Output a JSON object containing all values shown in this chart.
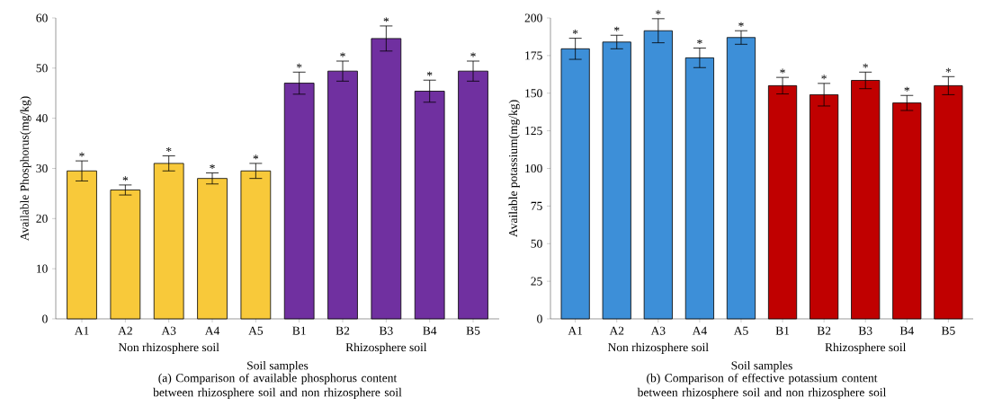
{
  "chart_data": [
    {
      "type": "bar",
      "title": "(a) Comparison of available phosphorus content between rhizosphere soil and non rhizosphere soil",
      "xlabel": "Soil samples",
      "ylabel": "Available Phosphorus(mg/kg)",
      "categories": [
        "A1",
        "A2",
        "A3",
        "A4",
        "A5",
        "B1",
        "B2",
        "B3",
        "B4",
        "B5"
      ],
      "series": [
        {
          "color": "#f8c93a",
          "values": [
            29.5,
            25.7,
            31.0,
            28.0,
            29.5,
            null,
            null,
            null,
            null,
            null
          ],
          "errors": [
            2.0,
            1.0,
            1.5,
            1.1,
            1.5,
            null,
            null,
            null,
            null,
            null
          ],
          "value_labels": [
            "*",
            "*",
            "*",
            "*",
            "*",
            null,
            null,
            null,
            null,
            null
          ]
        },
        {
          "color": "#7030a0",
          "values": [
            null,
            null,
            null,
            null,
            null,
            47.0,
            49.4,
            55.9,
            45.4,
            49.4
          ],
          "errors": [
            null,
            null,
            null,
            null,
            null,
            2.2,
            2.0,
            2.5,
            2.2,
            2.0
          ],
          "value_labels": [
            null,
            null,
            null,
            null,
            null,
            "*",
            "*",
            "*",
            "*",
            "*"
          ]
        }
      ],
      "ylim": [
        0,
        60
      ],
      "yticks": [
        0,
        10,
        20,
        30,
        40,
        50,
        60
      ],
      "annotations": [
        "Non rhizosphere soil",
        "Rhizosphere soil"
      ]
    },
    {
      "type": "bar",
      "title": "(b) Comparison of effective potassium content between rhizosphere soil and non rhizosphere soil",
      "xlabel": "Soil samples",
      "ylabel": "Available potassium(mg/kg)",
      "categories": [
        "A1",
        "A2",
        "A3",
        "A4",
        "A5",
        "B1",
        "B2",
        "B3",
        "B4",
        "B5"
      ],
      "series": [
        {
          "color": "#3d8fd8",
          "values": [
            179.5,
            184.0,
            191.5,
            173.5,
            187.0,
            null,
            null,
            null,
            null,
            null
          ],
          "errors": [
            7.0,
            4.5,
            8.0,
            6.5,
            4.5,
            null,
            null,
            null,
            null,
            null
          ],
          "value_labels": [
            "*",
            "*",
            "*",
            "*",
            "*",
            null,
            null,
            null,
            null,
            null
          ]
        },
        {
          "color": "#c00000",
          "values": [
            null,
            null,
            null,
            null,
            null,
            155.0,
            149.0,
            158.5,
            143.5,
            155.0
          ],
          "errors": [
            null,
            null,
            null,
            null,
            null,
            5.5,
            7.5,
            5.5,
            5.0,
            6.0
          ],
          "value_labels": [
            null,
            null,
            null,
            null,
            null,
            "*",
            "*",
            "*",
            "*",
            "*"
          ]
        }
      ],
      "ylim": [
        0,
        200
      ],
      "yticks": [
        0,
        25,
        50,
        75,
        100,
        125,
        150,
        175,
        200
      ],
      "annotations": [
        "Non rhizosphere soil",
        "Rhizosphere soil"
      ]
    }
  ]
}
